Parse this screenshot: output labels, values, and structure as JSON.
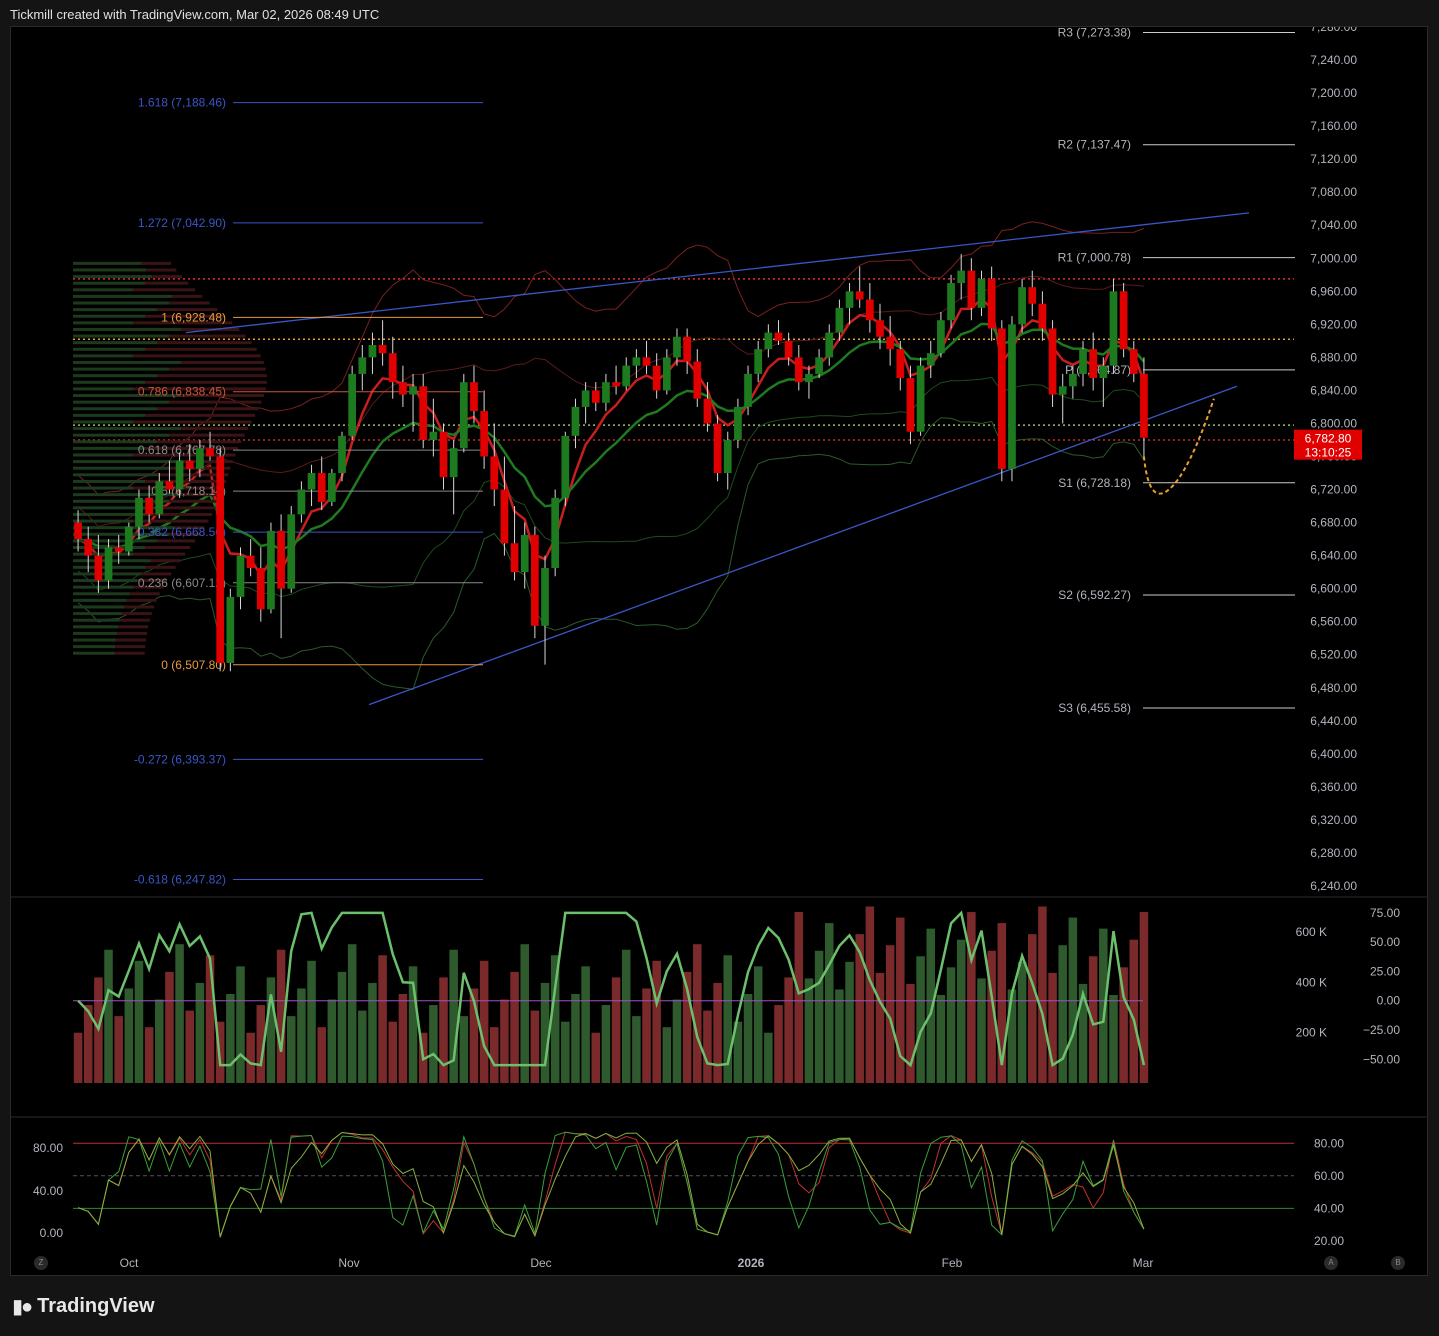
{
  "header": {
    "source": "Tickmill created with TradingView.com, Mar 02, 2026 08:49 UTC"
  },
  "footer": {
    "brand": "TradingView"
  },
  "buttons": {
    "left": "Z",
    "auto": "A",
    "log": "B"
  },
  "colors": {
    "bull": "#1e7a1e",
    "bear": "#e00000",
    "fib_blue": "#3a56c8",
    "fib_orange": "#e89a3c",
    "pivot": "#cccccc"
  },
  "chart_data": [
    {
      "type": "candlestick",
      "price_axis": {
        "min": 6240,
        "max": 7280,
        "ticks": [
          "7,280.00",
          "7,240.00",
          "7,200.00",
          "7,160.00",
          "7,120.00",
          "7,080.00",
          "7,040.00",
          "7,000.00",
          "6,960.00",
          "6,920.00",
          "6,880.00",
          "6,840.00",
          "6,800.00",
          "6,760.00",
          "6,720.00",
          "6,680.00",
          "6,640.00",
          "6,600.00",
          "6,560.00",
          "6,520.00",
          "6,480.00",
          "6,440.00",
          "6,400.00",
          "6,360.00",
          "6,320.00",
          "6,280.00",
          "6,240.00"
        ]
      },
      "time_axis": [
        "Oct",
        "Nov",
        "Dec",
        "2026",
        "Feb",
        "Mar"
      ],
      "last_price": {
        "value": "6,782.80",
        "countdown": "13:10:25"
      },
      "fib_levels": [
        {
          "label": "1.618 (7,188.46)",
          "value": 7188.46,
          "color": "#3a56c8"
        },
        {
          "label": "1.272 (7,042.90)",
          "value": 7042.9,
          "color": "#3a56c8"
        },
        {
          "label": "1 (6,928.48)",
          "value": 6928.48,
          "color": "#e89a3c"
        },
        {
          "label": "0.786 (6,838.45)",
          "value": 6838.45,
          "color": "#c8553c"
        },
        {
          "label": "0.618 (6,767.78)",
          "value": 6767.78,
          "color": "#8a8a8a"
        },
        {
          "label": "0.5 (6,718.14)",
          "value": 6718.14,
          "color": "#8a8a8a"
        },
        {
          "label": "0.382 (6,668.50)",
          "value": 6668.5,
          "color": "#3a56c8"
        },
        {
          "label": "0.236 (6,607.12)",
          "value": 6607.12,
          "color": "#8a8a8a"
        },
        {
          "label": "0 (6,507.80)",
          "value": 6507.8,
          "color": "#e89a3c"
        },
        {
          "label": "-0.272 (6,393.37)",
          "value": 6393.37,
          "color": "#3a56c8"
        },
        {
          "label": "-0.618 (6,247.82)",
          "value": 6247.82,
          "color": "#3a56c8"
        }
      ],
      "pivots": [
        {
          "label": "R3 (7,273.38)",
          "value": 7273.38
        },
        {
          "label": "R2 (7,137.47)",
          "value": 7137.47
        },
        {
          "label": "R1 (7,000.78)",
          "value": 7000.78
        },
        {
          "label": "P (6,864.87)",
          "value": 6864.87
        },
        {
          "label": "S1 (6,728.18)",
          "value": 6728.18
        },
        {
          "label": "S2 (6,592.27)",
          "value": 6592.27
        },
        {
          "label": "S3 (6,455.58)",
          "value": 6455.58
        }
      ],
      "horizontal_levels": [
        {
          "value": 6975,
          "color": "#e03030"
        },
        {
          "value": 6902,
          "color": "#e8a030"
        },
        {
          "value": 6798,
          "color": "#9ac060"
        },
        {
          "value": 6780,
          "color": "#c03030"
        }
      ],
      "channel": {
        "upper": [
          [
            6910,
            7055
          ]
        ],
        "lower": [
          [
            6508,
            6845
          ]
        ]
      },
      "candles": [
        [
          6680,
          6695,
          6645,
          6660
        ],
        [
          6660,
          6675,
          6620,
          6640
        ],
        [
          6640,
          6665,
          6595,
          6610
        ],
        [
          6610,
          6660,
          6600,
          6650
        ],
        [
          6650,
          6665,
          6630,
          6645
        ],
        [
          6645,
          6680,
          6640,
          6675
        ],
        [
          6675,
          6720,
          6660,
          6710
        ],
        [
          6710,
          6725,
          6680,
          6690
        ],
        [
          6690,
          6740,
          6685,
          6730
        ],
        [
          6730,
          6755,
          6715,
          6720
        ],
        [
          6720,
          6765,
          6710,
          6755
        ],
        [
          6755,
          6775,
          6730,
          6745
        ],
        [
          6745,
          6780,
          6735,
          6770
        ],
        [
          6770,
          6790,
          6755,
          6760
        ],
        [
          6760,
          6770,
          6500,
          6510
        ],
        [
          6510,
          6600,
          6500,
          6590
        ],
        [
          6590,
          6650,
          6575,
          6640
        ],
        [
          6640,
          6660,
          6615,
          6625
        ],
        [
          6625,
          6650,
          6560,
          6575
        ],
        [
          6575,
          6680,
          6570,
          6670
        ],
        [
          6670,
          6690,
          6540,
          6600
        ],
        [
          6600,
          6700,
          6595,
          6690
        ],
        [
          6690,
          6730,
          6680,
          6720
        ],
        [
          6720,
          6750,
          6700,
          6740
        ],
        [
          6740,
          6760,
          6695,
          6705
        ],
        [
          6705,
          6745,
          6700,
          6740
        ],
        [
          6740,
          6790,
          6730,
          6785
        ],
        [
          6785,
          6870,
          6780,
          6860
        ],
        [
          6860,
          6895,
          6840,
          6880
        ],
        [
          6880,
          6910,
          6860,
          6895
        ],
        [
          6895,
          6925,
          6870,
          6885
        ],
        [
          6885,
          6905,
          6830,
          6850
        ],
        [
          6850,
          6870,
          6820,
          6835
        ],
        [
          6835,
          6860,
          6790,
          6845
        ],
        [
          6845,
          6860,
          6770,
          6780
        ],
        [
          6780,
          6830,
          6760,
          6790
        ],
        [
          6790,
          6800,
          6720,
          6735
        ],
        [
          6735,
          6780,
          6690,
          6770
        ],
        [
          6770,
          6860,
          6765,
          6850
        ],
        [
          6850,
          6870,
          6800,
          6815
        ],
        [
          6815,
          6840,
          6745,
          6760
        ],
        [
          6760,
          6800,
          6700,
          6720
        ],
        [
          6720,
          6760,
          6640,
          6655
        ],
        [
          6655,
          6700,
          6610,
          6620
        ],
        [
          6620,
          6680,
          6600,
          6665
        ],
        [
          6665,
          6675,
          6540,
          6555
        ],
        [
          6555,
          6640,
          6508,
          6625
        ],
        [
          6625,
          6720,
          6615,
          6710
        ],
        [
          6710,
          6790,
          6700,
          6785
        ],
        [
          6785,
          6830,
          6770,
          6820
        ],
        [
          6820,
          6850,
          6800,
          6840
        ],
        [
          6840,
          6850,
          6815,
          6825
        ],
        [
          6825,
          6860,
          6815,
          6850
        ],
        [
          6850,
          6870,
          6835,
          6845
        ],
        [
          6845,
          6880,
          6840,
          6870
        ],
        [
          6870,
          6890,
          6855,
          6880
        ],
        [
          6880,
          6900,
          6860,
          6870
        ],
        [
          6870,
          6885,
          6830,
          6840
        ],
        [
          6840,
          6890,
          6835,
          6880
        ],
        [
          6880,
          6915,
          6870,
          6905
        ],
        [
          6905,
          6915,
          6860,
          6875
        ],
        [
          6875,
          6890,
          6820,
          6830
        ],
        [
          6830,
          6850,
          6790,
          6800
        ],
        [
          6800,
          6810,
          6730,
          6740
        ],
        [
          6740,
          6790,
          6720,
          6780
        ],
        [
          6780,
          6830,
          6770,
          6820
        ],
        [
          6820,
          6870,
          6810,
          6860
        ],
        [
          6860,
          6900,
          6850,
          6890
        ],
        [
          6890,
          6920,
          6880,
          6910
        ],
        [
          6910,
          6925,
          6895,
          6900
        ],
        [
          6900,
          6910,
          6870,
          6880
        ],
        [
          6880,
          6895,
          6840,
          6850
        ],
        [
          6850,
          6870,
          6830,
          6860
        ],
        [
          6860,
          6890,
          6855,
          6880
        ],
        [
          6880,
          6920,
          6870,
          6910
        ],
        [
          6910,
          6950,
          6900,
          6940
        ],
        [
          6940,
          6970,
          6920,
          6960
        ],
        [
          6960,
          6990,
          6940,
          6950
        ],
        [
          6950,
          6970,
          6910,
          6925
        ],
        [
          6925,
          6945,
          6890,
          6905
        ],
        [
          6905,
          6930,
          6870,
          6890
        ],
        [
          6890,
          6900,
          6840,
          6855
        ],
        [
          6855,
          6870,
          6775,
          6790
        ],
        [
          6790,
          6880,
          6785,
          6870
        ],
        [
          6870,
          6900,
          6855,
          6885
        ],
        [
          6885,
          6935,
          6880,
          6925
        ],
        [
          6925,
          6980,
          6915,
          6970
        ],
        [
          6970,
          7005,
          6950,
          6985
        ],
        [
          6985,
          7000,
          6925,
          6940
        ],
        [
          6940,
          6985,
          6930,
          6975
        ],
        [
          6975,
          6990,
          6900,
          6915
        ],
        [
          6915,
          6925,
          6730,
          6745
        ],
        [
          6745,
          6930,
          6730,
          6920
        ],
        [
          6920,
          6975,
          6910,
          6965
        ],
        [
          6965,
          6985,
          6930,
          6945
        ],
        [
          6945,
          6960,
          6900,
          6915
        ],
        [
          6915,
          6925,
          6820,
          6835
        ],
        [
          6835,
          6860,
          6800,
          6845
        ],
        [
          6845,
          6870,
          6830,
          6860
        ],
        [
          6860,
          6900,
          6845,
          6890
        ],
        [
          6890,
          6910,
          6840,
          6855
        ],
        [
          6855,
          6880,
          6820,
          6870
        ],
        [
          6870,
          6975,
          6860,
          6960
        ],
        [
          6960,
          6970,
          6880,
          6890
        ],
        [
          6890,
          6900,
          6850,
          6860
        ],
        [
          6860,
          6880,
          6760,
          6782.8
        ]
      ],
      "indicators": [
        "Bollinger Bands",
        "EMA",
        "Volume Profile"
      ]
    },
    {
      "type": "bar",
      "name": "Volume + oscillator",
      "left_axis": [
        "600 K",
        "400 K",
        "200 K"
      ],
      "right_axis": [
        "75.00",
        "50.00",
        "25.00",
        "0.00",
        "−25.00",
        "−50.00"
      ],
      "ylim_volume": [
        0,
        700000
      ],
      "ylim_osc": [
        -60,
        80
      ],
      "zero_line": 0
    },
    {
      "type": "line",
      "name": "Stochastic / RSI",
      "left_axis": [
        "80.00",
        "40.00",
        "0.00"
      ],
      "right_axis": [
        "80.00",
        "60.00",
        "40.00",
        "20.00"
      ],
      "ylim": [
        15,
        90
      ],
      "bands": [
        80,
        60,
        40
      ]
    }
  ]
}
